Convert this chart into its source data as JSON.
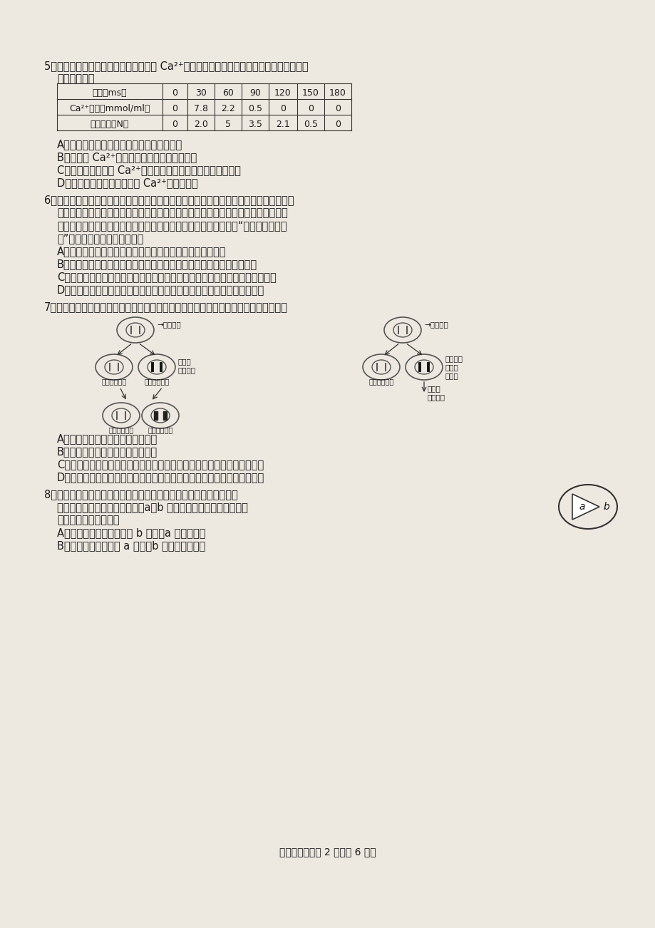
{
  "bg_color": "#e8e8e8",
  "page_bg": "#f5f5f0",
  "text_color": "#1a1a1a",
  "q5_header": "5．下表为人体肌细胞受刺激后，细胞内 Ca²⁺含量和肌肉收缩力量随时间的变化关系。表中",
  "q5_header2": "数据可以说明",
  "table_headers": [
    "时间（ms）",
    "0",
    "30",
    "60",
    "90",
    "120",
    "150",
    "180"
  ],
  "table_row1": [
    "Ca²⁺含量（mmol/ml）",
    "0",
    "7.8",
    "2.2",
    "0.5",
    "0",
    "0",
    "0"
  ],
  "table_row2": [
    "肌肉力量（N）",
    "0",
    "2.0",
    "5",
    "3.5",
    "2.1",
    "0.5",
    "0"
  ],
  "q5_A": "A．肌肉收缩是一个以神经为主导的调节过程",
  "q5_B": "B．细胞内 Ca²⁺浓度与肌肉收缩力量呈正相关",
  "q5_C": "C．肌肉收缩过程中 Ca²⁺最可能是以胞吞的方式进入肌细胞的",
  "q5_D": "D．肌肉在达到最大收缩力前 Ca²⁺就开始释放",
  "q6_header": "6．生物有机体内细胞种类繁多，各种细胞的大小相差悬殊，形态各异。但是不论同类动、",
  "q6_line2": "植物的个体差异有多大，同一器官或组织的细胞大小是在一个恒定的范围之内，器官",
  "q6_line3": "组织的大小主要取决于细胞的数量，而与细胞的大小无关，这就是“细胞体积守恒定",
  "q6_line4": "律”。这是因为细胞的体积越大",
  "q6_A": "A．细胞的表面积与体积的比例越小，物质相对运输能力越强",
  "q6_B": "B．细胞核与细胞质的体积的比例越小，细胞核对细胞质的控制能力越强",
  "q6_C": "C．使细胞内的一些重要分子的浓度变小，导致一些重要生化反应不能正常进行",
  "q6_D": "D．由于重要细胞器数目的相对恒定，相应的功能仍能满足细胞代谢的需要",
  "q7_header": "7．下图为原癌基因和抑癌基因的突变对细胞的影响示意图。下列相关叙述中不正确的是",
  "q7_A": "A．抑癌基因的突变类似于隐性突变",
  "q7_B": "B．原癌基因的突变类似于显性突变",
  "q7_C": "C．抑癌基因是细胞周期的制动器，它们可抑制细胞分裂并阻止细胞的癌变",
  "q7_D": "D．原癌基因是调节细胞生长和增殖的正常基因，它们是细胞周期的加速器",
  "q8_header": "8．研究表明，细胞的分裂间期和分裂期均有蛋白质的合成。右图为人",
  "q8_line2": "体内的某组织细胞的增殖周期，a、b 分别表示分裂期和分裂间期。",
  "q8_line3": "下列有关说法正确的是",
  "q8_A": "A．基因突变只可能发生在 b 时期，a 时期不发生",
  "q8_B": "B．基因重组只发生在 a 时期，b 时期不可能发生",
  "footer": "高三生物试题第 2 页（共 6 页）"
}
